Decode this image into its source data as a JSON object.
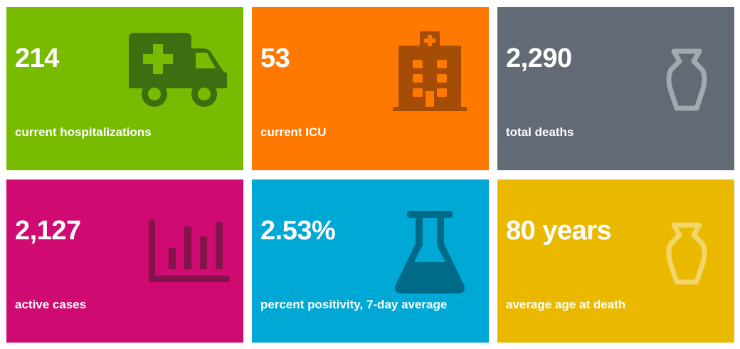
{
  "tiles": [
    {
      "value": "214",
      "label": "current hospitalizations",
      "icon": "ambulance-icon",
      "bg_color": "#78BB00",
      "icon_color": "#3F6E10"
    },
    {
      "value": "53",
      "label": "current ICU",
      "icon": "hospital-building-icon",
      "bg_color": "#FF7800",
      "icon_color": "#A54C06"
    },
    {
      "value": "2,290",
      "label": "total deaths",
      "icon": "urn-icon",
      "bg_color": "#626A75",
      "icon_color": "#A4A9AE"
    },
    {
      "value": "2,127",
      "label": "active cases",
      "icon": "bar-chart-icon",
      "bg_color": "#CF0A71",
      "icon_color": "#83134A"
    },
    {
      "value": "2.53%",
      "label": "percent positivity, 7-day average",
      "icon": "flask-icon",
      "bg_color": "#00A8D5",
      "icon_color": "#006B88"
    },
    {
      "value": "80 years",
      "label": "average age at death",
      "icon": "urn-icon",
      "bg_color": "#EBB800",
      "icon_color": "#F3D66B"
    }
  ]
}
